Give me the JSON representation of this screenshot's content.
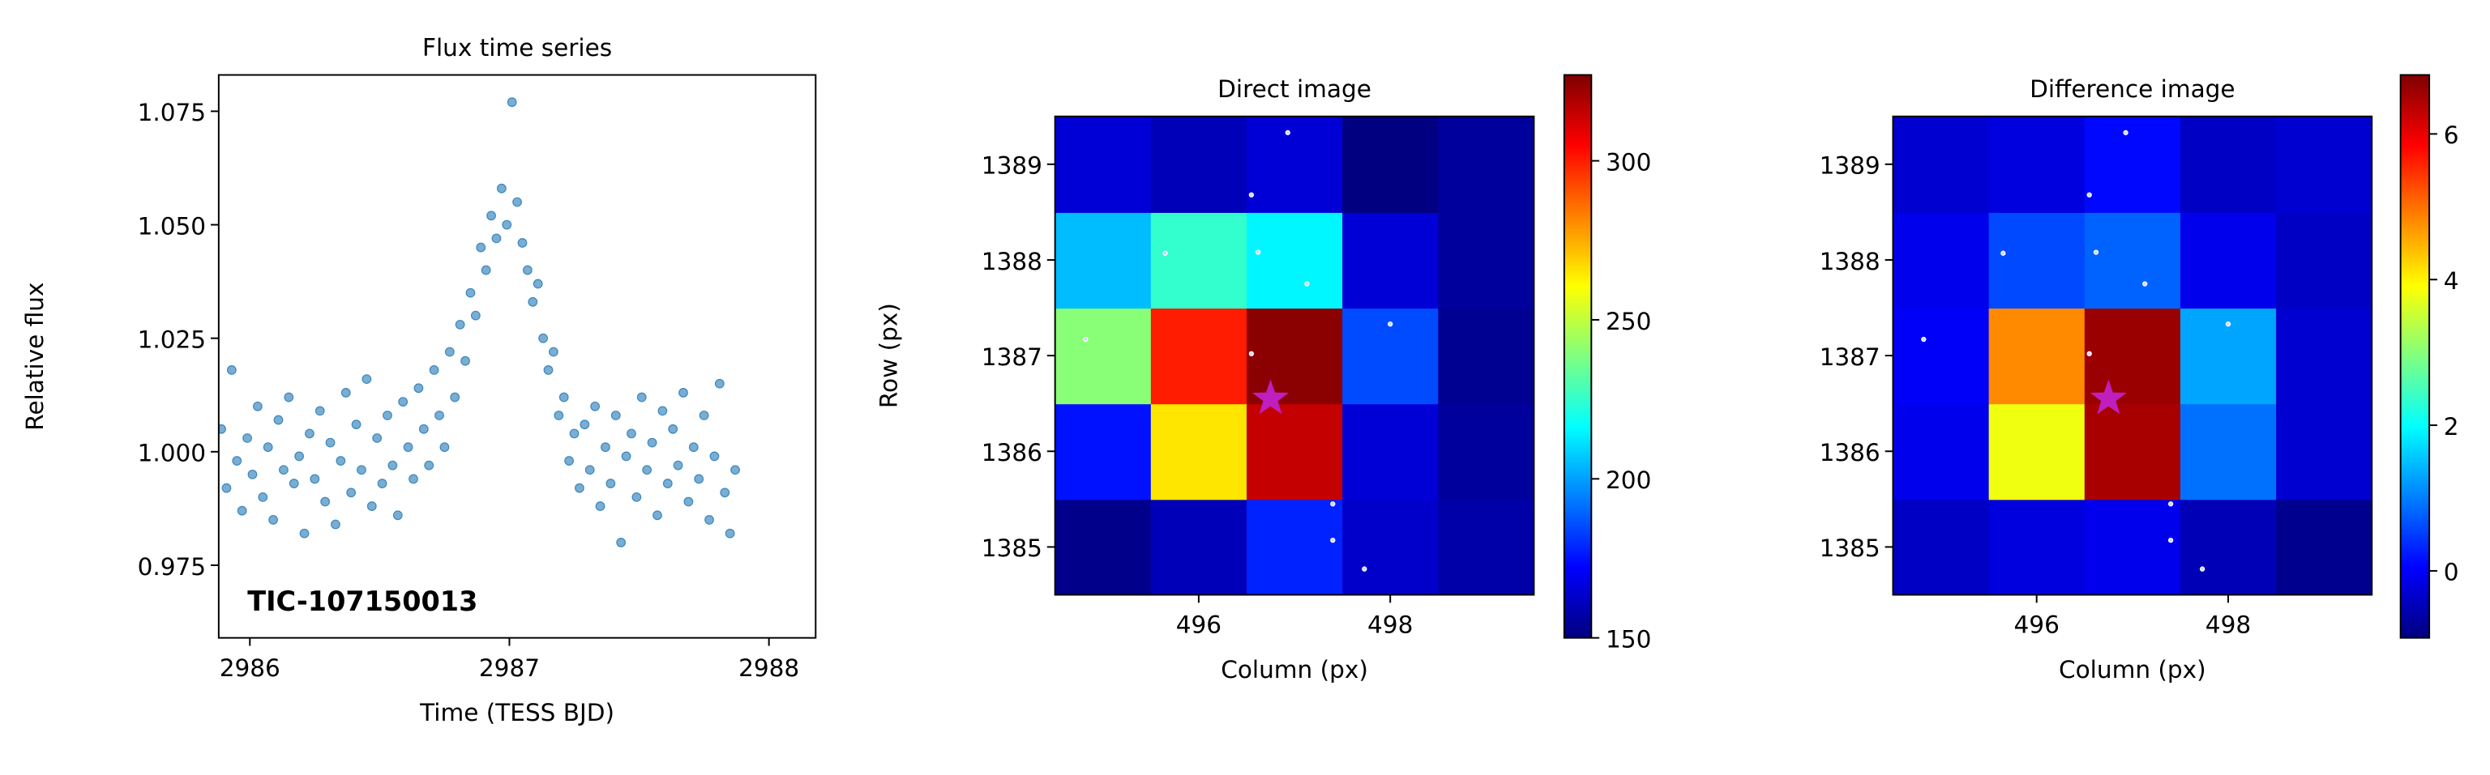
{
  "chart_data": [
    {
      "type": "scatter",
      "title": "Flux time series",
      "xlabel": "Time (TESS BJD)",
      "ylabel": "Relative flux",
      "annotation": "TIC-107150013",
      "color": "#1f77b4",
      "x": [
        2985.89,
        2985.91,
        2985.93,
        2985.95,
        2985.97,
        2985.99,
        2986.01,
        2986.03,
        2986.05,
        2986.07,
        2986.09,
        2986.11,
        2986.13,
        2986.15,
        2986.17,
        2986.19,
        2986.21,
        2986.23,
        2986.25,
        2986.27,
        2986.29,
        2986.31,
        2986.33,
        2986.35,
        2986.37,
        2986.39,
        2986.41,
        2986.43,
        2986.45,
        2986.47,
        2986.49,
        2986.51,
        2986.53,
        2986.55,
        2986.57,
        2986.59,
        2986.61,
        2986.63,
        2986.65,
        2986.67,
        2986.69,
        2986.71,
        2986.73,
        2986.75,
        2986.77,
        2986.79,
        2986.81,
        2986.83,
        2986.85,
        2986.87,
        2986.89,
        2986.91,
        2986.93,
        2986.95,
        2986.97,
        2986.99,
        2987.01,
        2987.03,
        2987.05,
        2987.07,
        2987.09,
        2987.11,
        2987.13,
        2987.15,
        2987.17,
        2987.19,
        2987.21,
        2987.23,
        2987.25,
        2987.27,
        2987.29,
        2987.31,
        2987.33,
        2987.35,
        2987.37,
        2987.39,
        2987.41,
        2987.43,
        2987.45,
        2987.47,
        2987.49,
        2987.51,
        2987.53,
        2987.55,
        2987.57,
        2987.59,
        2987.61,
        2987.63,
        2987.65,
        2987.67,
        2987.69,
        2987.71,
        2987.73,
        2987.75,
        2987.77,
        2987.79,
        2987.81,
        2987.83,
        2987.85,
        2987.87
      ],
      "values": [
        1.005,
        0.992,
        1.018,
        0.998,
        0.987,
        1.003,
        0.995,
        1.01,
        0.99,
        1.001,
        0.985,
        1.007,
        0.996,
        1.012,
        0.993,
        0.999,
        0.982,
        1.004,
        0.994,
        1.009,
        0.989,
        1.002,
        0.984,
        0.998,
        1.013,
        0.991,
        1.006,
        0.996,
        1.016,
        0.988,
        1.003,
        0.993,
        1.008,
        0.997,
        0.986,
        1.011,
        1.001,
        0.994,
        1.014,
        1.005,
        0.997,
        1.018,
        1.008,
        1.001,
        1.022,
        1.012,
        1.028,
        1.02,
        1.035,
        1.03,
        1.045,
        1.04,
        1.052,
        1.047,
        1.058,
        1.05,
        1.077,
        1.055,
        1.046,
        1.04,
        1.033,
        1.037,
        1.025,
        1.018,
        1.022,
        1.008,
        1.012,
        0.998,
        1.004,
        0.992,
        1.006,
        0.996,
        1.01,
        0.988,
        1.001,
        0.993,
        1.008,
        0.98,
        0.999,
        1.004,
        0.99,
        1.012,
        0.996,
        1.002,
        0.986,
        1.009,
        0.993,
        1.005,
        0.997,
        1.013,
        0.989,
        1.001,
        0.994,
        1.008,
        0.985,
        0.999,
        1.015,
        0.991,
        0.982,
        0.996
      ],
      "xlim": [
        2985.88,
        2988.18
      ],
      "xticks": [
        2986,
        2987,
        2988
      ],
      "ylim": [
        0.959,
        1.083
      ],
      "yticks": [
        0.975,
        {
          "value": 1,
          "label": "1.000"
        },
        1.025,
        {
          "value": 1.05,
          "label": "1.050"
        },
        1.075
      ]
    },
    {
      "type": "heatmap",
      "title": "Direct image",
      "xlabel": "Column (px)",
      "ylabel": "Row (px)",
      "colormap": "jet",
      "x": [
        495,
        496,
        497,
        498,
        499
      ],
      "y": [
        1385,
        1386,
        1387,
        1388,
        1389
      ],
      "values": [
        [
          152,
          160,
          178,
          163,
          157
        ],
        [
          175,
          265,
          315,
          165,
          155
        ],
        [
          240,
          300,
          325,
          185,
          153
        ],
        [
          205,
          225,
          215,
          165,
          155
        ],
        [
          165,
          160,
          165,
          150,
          155
        ]
      ],
      "xlim": [
        494.5,
        499.5
      ],
      "xticks": [
        496,
        498
      ],
      "ylim": [
        1384.5,
        1389.5
      ],
      "yticks": [
        1385,
        1386,
        1387,
        1388,
        1389
      ],
      "clim": [
        150,
        327
      ],
      "cticks": [
        150,
        200,
        250,
        300
      ],
      "sources": {
        "x": [
          496.93,
          496.55,
          495.65,
          496.62,
          497.13,
          494.82,
          496.55,
          498.0,
          497.4,
          497.4,
          497.73
        ],
        "y": [
          1389.33,
          1388.68,
          1388.07,
          1388.08,
          1387.75,
          1387.17,
          1387.02,
          1387.33,
          1385.45,
          1385.07,
          1384.77
        ]
      },
      "target": {
        "x": 496.75,
        "y": 1386.55,
        "color": "#bf1fbf"
      }
    },
    {
      "type": "heatmap",
      "title": "Difference image",
      "xlabel": "Column (px)",
      "colormap": "jet",
      "x": [
        495,
        496,
        497,
        498,
        499
      ],
      "y": [
        1385,
        1386,
        1387,
        1388,
        1389
      ],
      "values": [
        [
          -0.4,
          -0.2,
          -0.1,
          -0.5,
          -0.8
        ],
        [
          -0.1,
          3.8,
          6.5,
          0.9,
          -0.3
        ],
        [
          0.0,
          4.8,
          6.6,
          1.3,
          -0.3
        ],
        [
          -0.1,
          0.6,
          0.8,
          -0.1,
          -0.4
        ],
        [
          -0.3,
          -0.2,
          0.1,
          -0.4,
          -0.3
        ]
      ],
      "xlim": [
        494.5,
        499.5
      ],
      "xticks": [
        496,
        498
      ],
      "ylim": [
        1384.5,
        1389.5
      ],
      "yticks": [
        1385,
        1386,
        1387,
        1388,
        1389
      ],
      "clim": [
        -0.92,
        6.81
      ],
      "cticks": [
        0,
        2,
        4,
        6
      ],
      "sources": {
        "x": [
          496.93,
          496.55,
          495.65,
          496.62,
          497.13,
          494.82,
          496.55,
          498.0,
          497.4,
          497.4,
          497.73
        ],
        "y": [
          1389.33,
          1388.68,
          1388.07,
          1388.08,
          1387.75,
          1387.17,
          1387.02,
          1387.33,
          1385.45,
          1385.07,
          1384.77
        ]
      },
      "target": {
        "x": 496.75,
        "y": 1386.55,
        "color": "#bf1fbf"
      }
    }
  ]
}
